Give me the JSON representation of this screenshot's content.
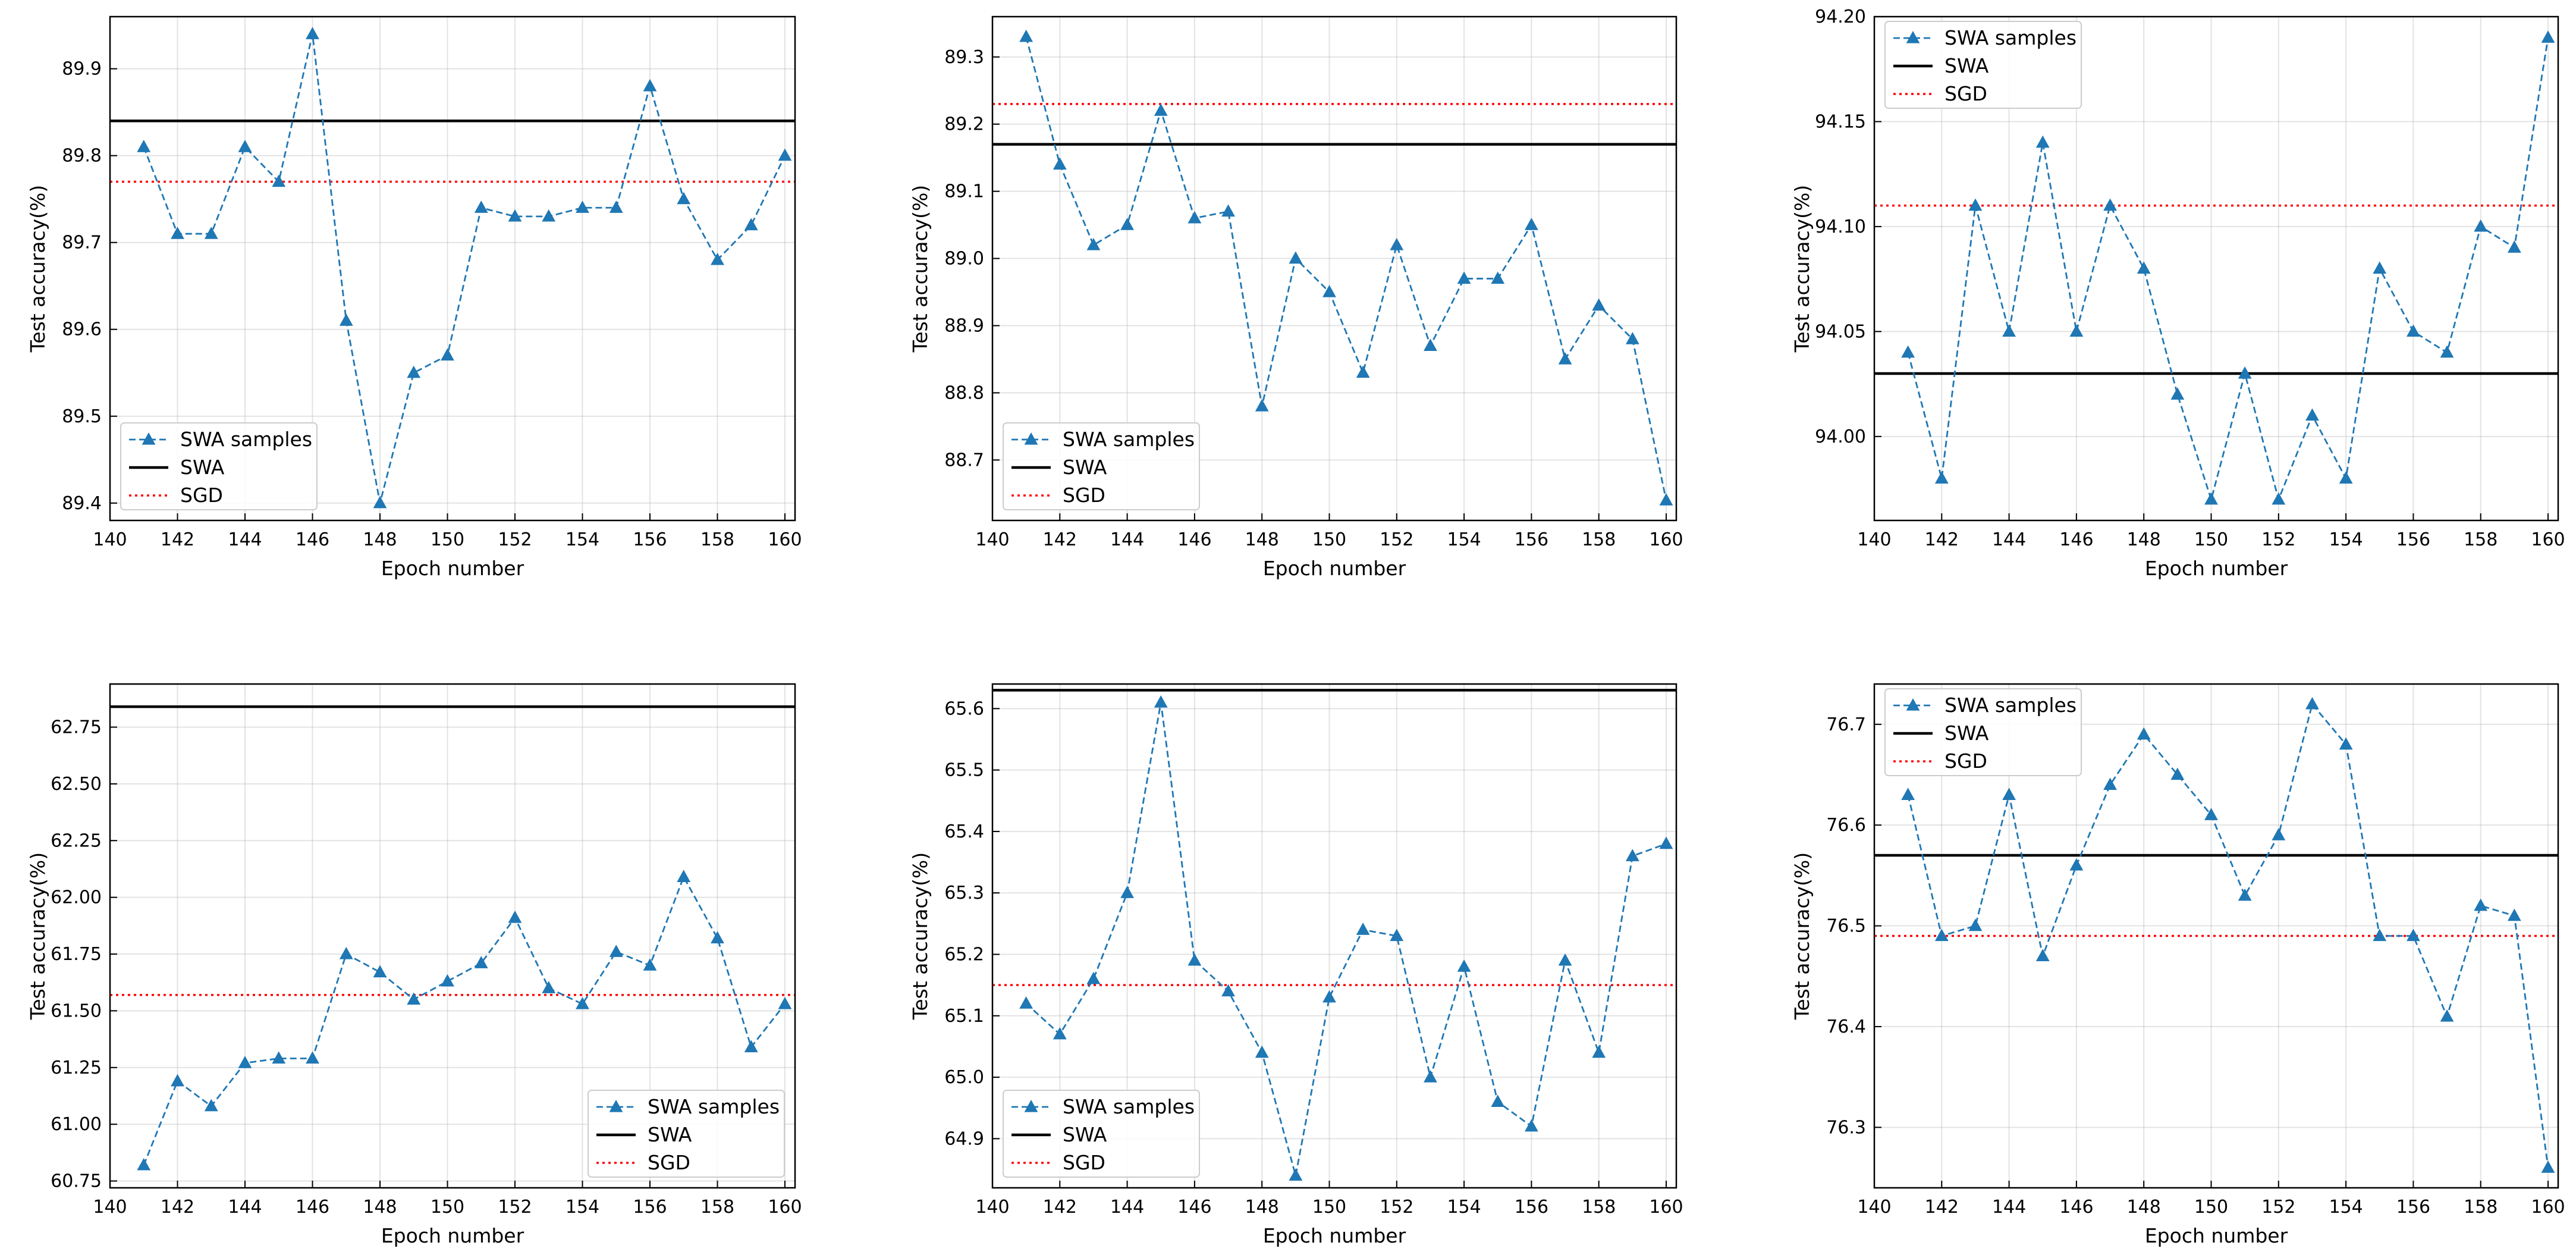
{
  "figure": {
    "common": {
      "xlabel": "Epoch number",
      "ylabel": "Test accuracy(%)",
      "xlim": [
        140,
        160.3
      ],
      "xticks": [
        140,
        142,
        144,
        146,
        148,
        150,
        152,
        154,
        156,
        158,
        160
      ],
      "colors": {
        "samples": "#1f77b4",
        "swa": "#000000",
        "sgd": "#ff0000"
      }
    }
  },
  "chart_data": [
    {
      "type": "line",
      "x": [
        141,
        142,
        143,
        144,
        145,
        146,
        147,
        148,
        149,
        150,
        151,
        152,
        153,
        154,
        155,
        156,
        157,
        158,
        159,
        160
      ],
      "series": [
        {
          "name": "SWA samples",
          "style": "dashed-triangle",
          "values": [
            89.81,
            89.71,
            89.71,
            89.81,
            89.77,
            89.94,
            89.61,
            89.4,
            89.55,
            89.57,
            89.74,
            89.73,
            89.73,
            89.74,
            89.74,
            89.88,
            89.75,
            89.68,
            89.72,
            89.8
          ]
        },
        {
          "name": "SWA",
          "style": "solid",
          "value": 89.84
        },
        {
          "name": "SGD",
          "style": "dotted",
          "value": 89.77
        }
      ],
      "xlabel": "Epoch number",
      "ylabel": "Test accuracy(%)",
      "ylim": [
        89.38,
        89.96
      ],
      "yticks": [
        89.4,
        89.5,
        89.6,
        89.7,
        89.8,
        89.9
      ],
      "ytick_labels": [
        "89.4",
        "89.5",
        "89.6",
        "89.7",
        "89.8",
        "89.9"
      ],
      "legend": "lower-left"
    },
    {
      "type": "line",
      "x": [
        141,
        142,
        143,
        144,
        145,
        146,
        147,
        148,
        149,
        150,
        151,
        152,
        153,
        154,
        155,
        156,
        157,
        158,
        159,
        160
      ],
      "series": [
        {
          "name": "SWA samples",
          "style": "dashed-triangle",
          "values": [
            89.33,
            89.14,
            89.02,
            89.05,
            89.22,
            89.06,
            89.07,
            88.78,
            89.0,
            88.95,
            88.83,
            89.02,
            88.87,
            88.97,
            88.97,
            89.05,
            88.85,
            88.93,
            88.88,
            88.64
          ]
        },
        {
          "name": "SWA",
          "style": "solid",
          "value": 89.17
        },
        {
          "name": "SGD",
          "style": "dotted",
          "value": 89.23
        }
      ],
      "xlabel": "Epoch number",
      "ylabel": "Test accuracy(%)",
      "ylim": [
        88.61,
        89.36
      ],
      "yticks": [
        88.7,
        88.8,
        88.9,
        89.0,
        89.1,
        89.2,
        89.3
      ],
      "ytick_labels": [
        "88.7",
        "88.8",
        "88.9",
        "89.0",
        "89.1",
        "89.2",
        "89.3"
      ],
      "legend": "lower-left"
    },
    {
      "type": "line",
      "x": [
        141,
        142,
        143,
        144,
        145,
        146,
        147,
        148,
        149,
        150,
        151,
        152,
        153,
        154,
        155,
        156,
        157,
        158,
        159,
        160
      ],
      "series": [
        {
          "name": "SWA samples",
          "style": "dashed-triangle",
          "values": [
            94.04,
            93.98,
            94.11,
            94.05,
            94.14,
            94.05,
            94.11,
            94.08,
            94.02,
            93.97,
            94.03,
            93.97,
            94.01,
            93.98,
            94.08,
            94.05,
            94.04,
            94.1,
            94.09,
            94.19
          ]
        },
        {
          "name": "SWA",
          "style": "solid",
          "value": 94.03
        },
        {
          "name": "SGD",
          "style": "dotted",
          "value": 94.11
        }
      ],
      "xlabel": "Epoch number",
      "ylabel": "Test accuracy(%)",
      "ylim": [
        93.96,
        94.2
      ],
      "yticks": [
        94.0,
        94.05,
        94.1,
        94.15,
        94.2
      ],
      "ytick_labels": [
        "94.00",
        "94.05",
        "94.10",
        "94.15",
        "94.20"
      ],
      "legend": "upper-left"
    },
    {
      "type": "line",
      "x": [
        141,
        142,
        143,
        144,
        145,
        146,
        147,
        148,
        149,
        150,
        151,
        152,
        153,
        154,
        155,
        156,
        157,
        158,
        159,
        160
      ],
      "series": [
        {
          "name": "SWA samples",
          "style": "dashed-triangle",
          "values": [
            60.82,
            61.19,
            61.08,
            61.27,
            61.29,
            61.29,
            61.75,
            61.67,
            61.55,
            61.63,
            61.71,
            61.91,
            61.6,
            61.53,
            61.76,
            61.7,
            62.09,
            61.82,
            61.34,
            61.53
          ]
        },
        {
          "name": "SWA",
          "style": "solid",
          "value": 62.84
        },
        {
          "name": "SGD",
          "style": "dotted",
          "value": 61.57
        }
      ],
      "xlabel": "Epoch number",
      "ylabel": "Test accuracy(%)",
      "ylim": [
        60.72,
        62.94
      ],
      "yticks": [
        60.75,
        61.0,
        61.25,
        61.5,
        61.75,
        62.0,
        62.25,
        62.5,
        62.75
      ],
      "ytick_labels": [
        "60.75",
        "61.00",
        "61.25",
        "61.50",
        "61.75",
        "62.00",
        "62.25",
        "62.50",
        "62.75"
      ],
      "legend": "lower-right"
    },
    {
      "type": "line",
      "x": [
        141,
        142,
        143,
        144,
        145,
        146,
        147,
        148,
        149,
        150,
        151,
        152,
        153,
        154,
        155,
        156,
        157,
        158,
        159,
        160
      ],
      "series": [
        {
          "name": "SWA samples",
          "style": "dashed-triangle",
          "values": [
            65.12,
            65.07,
            65.16,
            65.3,
            65.61,
            65.19,
            65.14,
            65.04,
            64.84,
            65.13,
            65.24,
            65.23,
            65.0,
            65.18,
            64.96,
            64.92,
            65.19,
            65.04,
            65.36,
            65.38
          ]
        },
        {
          "name": "SWA",
          "style": "solid",
          "value": 65.63
        },
        {
          "name": "SGD",
          "style": "dotted",
          "value": 65.15
        }
      ],
      "xlabel": "Epoch number",
      "ylabel": "Test accuracy(%)",
      "ylim": [
        64.82,
        65.64
      ],
      "yticks": [
        64.9,
        65.0,
        65.1,
        65.2,
        65.3,
        65.4,
        65.5,
        65.6
      ],
      "ytick_labels": [
        "64.9",
        "65.0",
        "65.1",
        "65.2",
        "65.3",
        "65.4",
        "65.5",
        "65.6"
      ],
      "legend": "lower-left"
    },
    {
      "type": "line",
      "x": [
        141,
        142,
        143,
        144,
        145,
        146,
        147,
        148,
        149,
        150,
        151,
        152,
        153,
        154,
        155,
        156,
        157,
        158,
        159,
        160
      ],
      "series": [
        {
          "name": "SWA samples",
          "style": "dashed-triangle",
          "values": [
            76.63,
            76.49,
            76.5,
            76.63,
            76.47,
            76.56,
            76.64,
            76.69,
            76.65,
            76.61,
            76.53,
            76.59,
            76.72,
            76.68,
            76.49,
            76.49,
            76.41,
            76.52,
            76.51,
            76.26
          ]
        },
        {
          "name": "SWA",
          "style": "solid",
          "value": 76.57
        },
        {
          "name": "SGD",
          "style": "dotted",
          "value": 76.49
        }
      ],
      "xlabel": "Epoch number",
      "ylabel": "Test accuracy(%)",
      "ylim": [
        76.24,
        76.74
      ],
      "yticks": [
        76.3,
        76.4,
        76.5,
        76.6,
        76.7
      ],
      "ytick_labels": [
        "76.3",
        "76.4",
        "76.5",
        "76.6",
        "76.7"
      ],
      "legend": "upper-left"
    }
  ]
}
